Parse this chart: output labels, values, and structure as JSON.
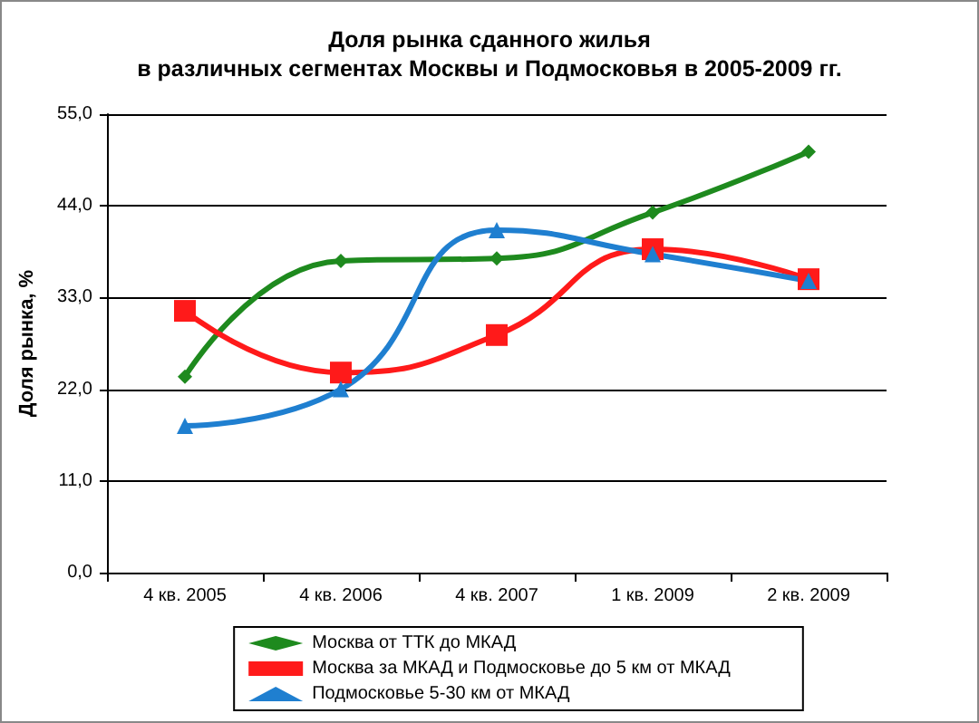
{
  "chart_data": {
    "type": "line",
    "title": "Доля рынка сданного жилья\nв различных сегментах Москвы и Подмосковья в 2005-2009 гг.",
    "ylabel": "Доля рынка, %",
    "categories": [
      "4 кв. 2005",
      "4 кв. 2006",
      "4 кв. 2007",
      "1 кв. 2009",
      "2 кв. 2009"
    ],
    "series": [
      {
        "name": "Москва от ТТК до МКАД",
        "color": "#1e8a1e",
        "marker": "diamond",
        "values": [
          23.5,
          37.4,
          37.7,
          43.2,
          50.5
        ]
      },
      {
        "name": "Москва за МКАД и Подмосковье до 5 км от МКАД",
        "color": "#ff1a1a",
        "marker": "square",
        "values": [
          31.4,
          24.0,
          28.5,
          38.8,
          35.2
        ]
      },
      {
        "name": "Подмосковье 5-30 км от МКАД",
        "color": "#1f7fd0",
        "marker": "triangle",
        "values": [
          17.6,
          22.0,
          41.1,
          38.2,
          35.0
        ]
      }
    ],
    "ylim": [
      0,
      55
    ],
    "yticks": [
      {
        "value": 0,
        "label": "0,0"
      },
      {
        "value": 11,
        "label": "11,0"
      },
      {
        "value": 22,
        "label": "22,0"
      },
      {
        "value": 33,
        "label": "33,0"
      },
      {
        "value": 44,
        "label": "44,0"
      },
      {
        "value": 55,
        "label": "55,0"
      }
    ],
    "grid": "y",
    "legend": "bottom",
    "line_style": "solid"
  }
}
